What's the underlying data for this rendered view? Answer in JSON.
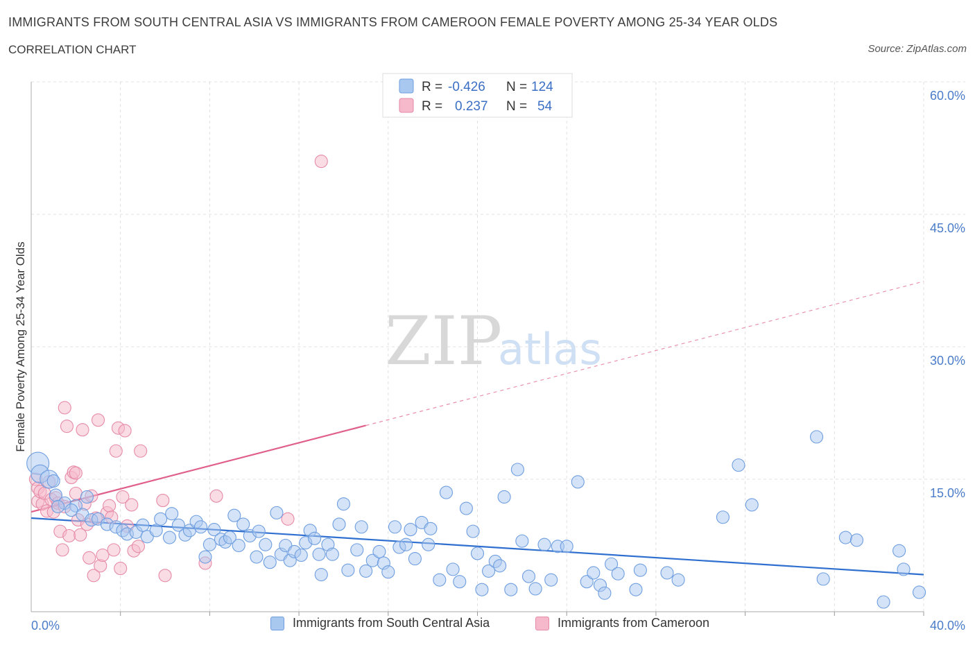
{
  "header": {
    "title": "IMMIGRANTS FROM SOUTH CENTRAL ASIA VS IMMIGRANTS FROM CAMEROON FEMALE POVERTY AMONG 25-34 YEAR OLDS",
    "subtitle": "CORRELATION CHART",
    "source": "Source: ZipAtlas.com"
  },
  "watermark": {
    "zip": "ZIP",
    "atlas": "atlas"
  },
  "legend_box": {
    "row1": {
      "r_label": "R =",
      "r_value": "-0.426",
      "n_label": "N =",
      "n_value": "124"
    },
    "row2": {
      "r_label": "R =",
      "r_value": "0.237",
      "n_label": "N =",
      "n_value": "54"
    }
  },
  "bottom_legend": {
    "series1": "Immigrants from South Central Asia",
    "series2": "Immigrants from Cameroon"
  },
  "colors": {
    "blue_fill": "#a9c8f0",
    "blue_stroke": "#6e9ee0",
    "blue_line": "#2f6fcf",
    "pink_fill": "#f5b9cb",
    "pink_stroke": "#e68aa7",
    "pink_line": "#e0608a",
    "grid": "#e0e0e0",
    "tick_text": "#4a7cc9"
  },
  "chart_data": {
    "type": "scatter",
    "title": "IMMIGRANTS FROM SOUTH CENTRAL ASIA VS IMMIGRANTS FROM CAMEROON FEMALE POVERTY AMONG 25-34 YEAR OLDS",
    "xlabel": "",
    "ylabel": "Female Poverty Among 25-34 Year Olds",
    "xlim": [
      0,
      40
    ],
    "ylim": [
      0,
      60
    ],
    "x_ticks": [
      "0.0%",
      "40.0%"
    ],
    "y_ticks": [
      {
        "value": 15,
        "label": "15.0%"
      },
      {
        "value": 30,
        "label": "30.0%"
      },
      {
        "value": 45,
        "label": "45.0%"
      },
      {
        "value": 60,
        "label": "60.0%"
      }
    ],
    "grid": true,
    "legend_placement": "top-center",
    "series": [
      {
        "name": "Immigrants from South Central Asia",
        "R": -0.426,
        "N": 124,
        "trend": {
          "x0": 0,
          "y0": 10.6,
          "x1": 40,
          "y1": 4.2
        },
        "points": [
          [
            0.3,
            16.8,
            3
          ],
          [
            0.4,
            15.6,
            2
          ],
          [
            0.8,
            15.0,
            2
          ],
          [
            1.0,
            14.8,
            1
          ],
          [
            1.1,
            13.2,
            1
          ],
          [
            1.5,
            12.3,
            1
          ],
          [
            1.2,
            11.9,
            1
          ],
          [
            2.0,
            12.0,
            1
          ],
          [
            1.8,
            11.5,
            1
          ],
          [
            2.5,
            13.0,
            1
          ],
          [
            2.3,
            11.0,
            1
          ],
          [
            2.7,
            10.4,
            1
          ],
          [
            3.0,
            10.5,
            1
          ],
          [
            3.4,
            9.9,
            1
          ],
          [
            3.8,
            9.6,
            1
          ],
          [
            4.1,
            9.2,
            1
          ],
          [
            4.3,
            8.8,
            1
          ],
          [
            4.7,
            9.0,
            1
          ],
          [
            5.0,
            9.8,
            1
          ],
          [
            5.2,
            8.5,
            1
          ],
          [
            5.6,
            9.2,
            1
          ],
          [
            5.8,
            10.5,
            1
          ],
          [
            6.2,
            8.4,
            1
          ],
          [
            6.3,
            11.1,
            1
          ],
          [
            6.6,
            9.8,
            1
          ],
          [
            6.9,
            8.7,
            1
          ],
          [
            7.1,
            9.2,
            1
          ],
          [
            7.4,
            10.2,
            1
          ],
          [
            7.6,
            9.6,
            1
          ],
          [
            7.8,
            6.2,
            1
          ],
          [
            8.0,
            7.6,
            1
          ],
          [
            8.2,
            9.3,
            1
          ],
          [
            8.5,
            8.2,
            1
          ],
          [
            8.7,
            7.9,
            1
          ],
          [
            8.9,
            8.4,
            1
          ],
          [
            9.1,
            10.9,
            1
          ],
          [
            9.3,
            7.5,
            1
          ],
          [
            9.5,
            9.9,
            1
          ],
          [
            9.8,
            8.6,
            1
          ],
          [
            10.1,
            6.2,
            1
          ],
          [
            10.2,
            9.1,
            1
          ],
          [
            10.5,
            7.6,
            1
          ],
          [
            10.7,
            5.6,
            1
          ],
          [
            11.0,
            11.2,
            1
          ],
          [
            11.2,
            6.5,
            1
          ],
          [
            11.4,
            7.5,
            1
          ],
          [
            11.6,
            5.8,
            1
          ],
          [
            11.8,
            6.8,
            1
          ],
          [
            12.1,
            6.4,
            1
          ],
          [
            12.3,
            7.8,
            1
          ],
          [
            12.5,
            9.2,
            1
          ],
          [
            12.7,
            8.3,
            1
          ],
          [
            12.9,
            6.5,
            1
          ],
          [
            13.0,
            4.2,
            1
          ],
          [
            13.3,
            7.6,
            1
          ],
          [
            13.5,
            6.5,
            1
          ],
          [
            13.8,
            9.9,
            1
          ],
          [
            14.0,
            12.2,
            1
          ],
          [
            14.2,
            4.7,
            1
          ],
          [
            14.6,
            7.0,
            1
          ],
          [
            14.8,
            9.6,
            1
          ],
          [
            15.0,
            4.6,
            1
          ],
          [
            15.3,
            5.8,
            1
          ],
          [
            15.6,
            6.8,
            1
          ],
          [
            15.8,
            5.5,
            1
          ],
          [
            16.0,
            4.5,
            1
          ],
          [
            16.3,
            9.6,
            1
          ],
          [
            16.5,
            7.3,
            1
          ],
          [
            16.8,
            7.6,
            1
          ],
          [
            17.0,
            9.3,
            1
          ],
          [
            17.2,
            6.0,
            1
          ],
          [
            17.5,
            10.1,
            1
          ],
          [
            17.8,
            7.6,
            1
          ],
          [
            17.9,
            9.4,
            1
          ],
          [
            18.3,
            3.6,
            1
          ],
          [
            18.6,
            13.5,
            1
          ],
          [
            18.9,
            4.8,
            1
          ],
          [
            19.2,
            3.4,
            1
          ],
          [
            19.5,
            11.7,
            1
          ],
          [
            19.8,
            9.1,
            1
          ],
          [
            20.0,
            6.6,
            1
          ],
          [
            20.2,
            2.5,
            1
          ],
          [
            20.5,
            4.6,
            1
          ],
          [
            20.8,
            5.7,
            1
          ],
          [
            21.0,
            5.2,
            1
          ],
          [
            21.2,
            13.0,
            1
          ],
          [
            21.5,
            2.5,
            1
          ],
          [
            21.8,
            16.1,
            1
          ],
          [
            22.0,
            8.0,
            1
          ],
          [
            22.3,
            4.0,
            1
          ],
          [
            22.6,
            2.6,
            1
          ],
          [
            23.0,
            7.6,
            1
          ],
          [
            23.3,
            3.6,
            1
          ],
          [
            23.6,
            7.4,
            1
          ],
          [
            24.0,
            7.4,
            1
          ],
          [
            24.5,
            14.7,
            1
          ],
          [
            24.9,
            3.4,
            1
          ],
          [
            25.2,
            4.4,
            1
          ],
          [
            25.5,
            3.0,
            1
          ],
          [
            25.7,
            2.1,
            1
          ],
          [
            26.0,
            5.4,
            1
          ],
          [
            26.3,
            4.3,
            1
          ],
          [
            27.1,
            2.5,
            1
          ],
          [
            27.3,
            4.7,
            1
          ],
          [
            28.5,
            4.4,
            1
          ],
          [
            29.0,
            3.6,
            1
          ],
          [
            31.0,
            10.7,
            1
          ],
          [
            31.7,
            16.6,
            1
          ],
          [
            32.3,
            12.1,
            1
          ],
          [
            35.2,
            19.8,
            1
          ],
          [
            35.5,
            3.7,
            1
          ],
          [
            36.5,
            8.4,
            1
          ],
          [
            37.0,
            8.1,
            1
          ],
          [
            38.2,
            1.1,
            1
          ],
          [
            38.9,
            6.9,
            1
          ],
          [
            39.1,
            4.8,
            1
          ],
          [
            39.8,
            2.2,
            1
          ]
        ]
      },
      {
        "name": "Immigrants from Cameroon",
        "R": 0.237,
        "N": 54,
        "trend": {
          "x0": 0,
          "y0": 11.3,
          "x1": 40,
          "y1": 37.4,
          "solid_until_x": 15
        },
        "points": [
          [
            0.2,
            15.0,
            1
          ],
          [
            0.3,
            14.0,
            1
          ],
          [
            0.3,
            12.5,
            1
          ],
          [
            0.4,
            13.6,
            1
          ],
          [
            0.5,
            12.2,
            1
          ],
          [
            0.6,
            13.4,
            1
          ],
          [
            0.7,
            11.4,
            1
          ],
          [
            0.8,
            14.7,
            1
          ],
          [
            0.9,
            12.7,
            1
          ],
          [
            1.0,
            11.3,
            1
          ],
          [
            1.1,
            12.9,
            1
          ],
          [
            1.2,
            12.3,
            1
          ],
          [
            1.3,
            9.1,
            1
          ],
          [
            1.4,
            7.0,
            1
          ],
          [
            1.5,
            11.9,
            1
          ],
          [
            1.5,
            23.1,
            1
          ],
          [
            1.6,
            21.0,
            1
          ],
          [
            1.7,
            8.6,
            1
          ],
          [
            1.8,
            15.2,
            1
          ],
          [
            1.9,
            15.8,
            1
          ],
          [
            2.0,
            13.4,
            1
          ],
          [
            2.0,
            15.7,
            1
          ],
          [
            2.1,
            10.4,
            1
          ],
          [
            2.2,
            8.7,
            1
          ],
          [
            2.3,
            20.6,
            1
          ],
          [
            2.4,
            12.2,
            1
          ],
          [
            2.5,
            9.9,
            1
          ],
          [
            2.6,
            6.1,
            1
          ],
          [
            2.7,
            13.1,
            1
          ],
          [
            2.8,
            4.1,
            1
          ],
          [
            2.9,
            10.6,
            1
          ],
          [
            3.0,
            21.7,
            1
          ],
          [
            3.1,
            5.2,
            1
          ],
          [
            3.2,
            6.4,
            1
          ],
          [
            3.4,
            11.2,
            1
          ],
          [
            3.5,
            12.0,
            1
          ],
          [
            3.6,
            10.7,
            1
          ],
          [
            3.7,
            7.0,
            1
          ],
          [
            3.8,
            18.2,
            1
          ],
          [
            3.9,
            20.8,
            1
          ],
          [
            4.0,
            4.9,
            1
          ],
          [
            4.1,
            13.0,
            1
          ],
          [
            4.2,
            20.5,
            1
          ],
          [
            4.3,
            9.7,
            1
          ],
          [
            4.5,
            12.1,
            1
          ],
          [
            4.6,
            6.9,
            1
          ],
          [
            4.8,
            7.4,
            1
          ],
          [
            4.9,
            18.2,
            1
          ],
          [
            5.9,
            12.6,
            1
          ],
          [
            6.0,
            4.1,
            1
          ],
          [
            7.8,
            5.5,
            1
          ],
          [
            8.3,
            13.1,
            1
          ],
          [
            11.5,
            10.5,
            1
          ],
          [
            13.0,
            51.0,
            1
          ]
        ]
      }
    ]
  }
}
